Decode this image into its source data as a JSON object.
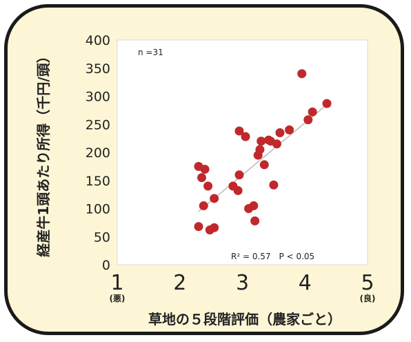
{
  "chart_data": {
    "type": "scatter",
    "title": "",
    "xlabel": "草地の５段階評価（農家ごと）",
    "ylabel": "経産牛1頭あたり所得（千円/頭）",
    "xlim": [
      1,
      5
    ],
    "ylim": [
      0,
      400
    ],
    "yticks": [
      "0",
      "50",
      "100",
      "150",
      "200",
      "250",
      "300",
      "350",
      "400"
    ],
    "xticks": [
      "1",
      "2",
      "3",
      "4",
      "5"
    ],
    "xtick_sub": {
      "min": "(悪)",
      "max": "(良)"
    },
    "n_label": "n =31",
    "stats_label": "R² = 0.57　P < 0.05",
    "grid": false,
    "legend": "none",
    "point_color": "#c0282c",
    "trend_color": "#b8b8b8",
    "trendline": {
      "x": [
        2.3,
        4.35
      ],
      "y": [
        95,
        285
      ]
    },
    "points": [
      {
        "x": 2.3,
        "y": 175
      },
      {
        "x": 2.4,
        "y": 170
      },
      {
        "x": 2.35,
        "y": 155
      },
      {
        "x": 2.45,
        "y": 140
      },
      {
        "x": 2.38,
        "y": 105
      },
      {
        "x": 2.55,
        "y": 118
      },
      {
        "x": 2.3,
        "y": 68
      },
      {
        "x": 2.48,
        "y": 62
      },
      {
        "x": 2.55,
        "y": 66
      },
      {
        "x": 2.85,
        "y": 140
      },
      {
        "x": 2.93,
        "y": 132
      },
      {
        "x": 2.95,
        "y": 160
      },
      {
        "x": 2.95,
        "y": 238
      },
      {
        "x": 3.05,
        "y": 228
      },
      {
        "x": 3.1,
        "y": 100
      },
      {
        "x": 3.18,
        "y": 105
      },
      {
        "x": 3.2,
        "y": 78
      },
      {
        "x": 3.25,
        "y": 195
      },
      {
        "x": 3.28,
        "y": 205
      },
      {
        "x": 3.3,
        "y": 220
      },
      {
        "x": 3.35,
        "y": 178
      },
      {
        "x": 3.45,
        "y": 220
      },
      {
        "x": 3.55,
        "y": 215
      },
      {
        "x": 3.5,
        "y": 142
      },
      {
        "x": 3.6,
        "y": 235
      },
      {
        "x": 3.75,
        "y": 240
      },
      {
        "x": 3.95,
        "y": 340
      },
      {
        "x": 4.05,
        "y": 258
      },
      {
        "x": 4.12,
        "y": 272
      },
      {
        "x": 4.35,
        "y": 287
      },
      {
        "x": 3.42,
        "y": 222
      }
    ]
  }
}
